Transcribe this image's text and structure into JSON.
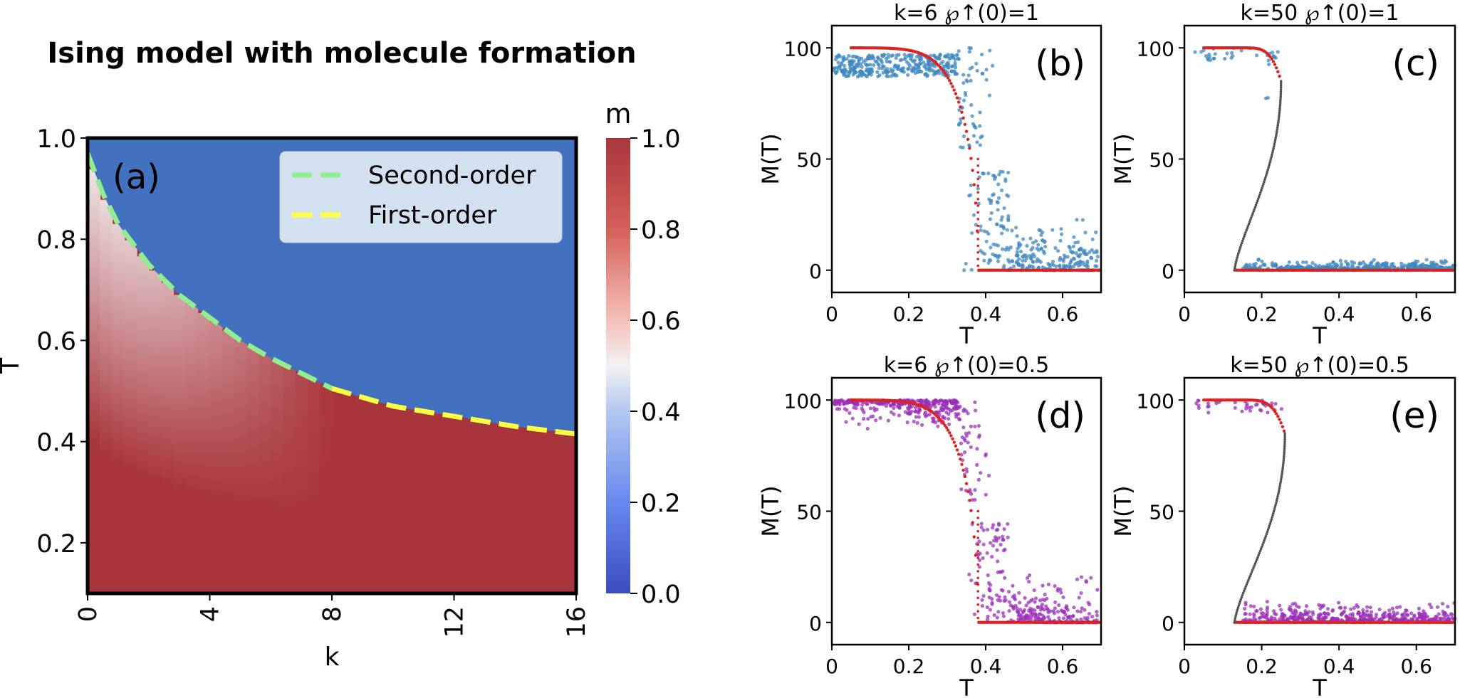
{
  "figure_title": "Ising model with molecule formation",
  "chart_data": [
    {
      "panel": "(a)",
      "type": "heatmap",
      "title": "Ising model with molecule formation",
      "xlabel": "k",
      "ylabel": "T",
      "xlim": [
        0,
        16
      ],
      "ylim": [
        0.1,
        1.0
      ],
      "x_ticks": [
        0,
        4,
        8,
        12,
        16
      ],
      "y_ticks": [
        0.2,
        0.4,
        0.6,
        0.8,
        1.0
      ],
      "colorbar": {
        "label": "m",
        "range": [
          0.0,
          1.0
        ],
        "ticks": [
          0.0,
          0.2,
          0.4,
          0.6,
          0.8,
          1.0
        ],
        "colormap": "coolwarm"
      },
      "colors": {
        "high": "#a8353b",
        "low": "#4271c0",
        "mid": "#f2f2f2",
        "second_order": "#90ee90",
        "first_order": "#ffff44"
      },
      "legend": {
        "position": "top-right",
        "entries": [
          "Second-order",
          "First-order"
        ]
      },
      "transition_lines": [
        {
          "name": "Second-order",
          "points": [
            [
              0,
              0.97
            ],
            [
              0.5,
              0.89
            ],
            [
              1,
              0.83
            ],
            [
              2,
              0.75
            ],
            [
              3,
              0.69
            ],
            [
              4,
              0.645
            ],
            [
              5,
              0.6
            ],
            [
              6,
              0.565
            ],
            [
              7,
              0.535
            ],
            [
              8,
              0.505
            ]
          ]
        },
        {
          "name": "First-order",
          "points": [
            [
              8,
              0.505
            ],
            [
              10,
              0.47
            ],
            [
              12,
              0.45
            ],
            [
              14,
              0.43
            ],
            [
              16,
              0.415
            ]
          ]
        }
      ]
    },
    {
      "panel": "(b)",
      "type": "scatter",
      "title": "k=6 ℘↑(0)=1",
      "xlabel": "T",
      "ylabel": "M(T)",
      "xlim": [
        0,
        0.7
      ],
      "ylim": [
        -10,
        110
      ],
      "x_ticks": [
        "0",
        "0.2",
        "0.4",
        "0.6"
      ],
      "y_ticks": [
        "0",
        "50",
        "100"
      ],
      "tc": 0.38,
      "colors": {
        "samples": "#3f88c0",
        "mean_field": "#dd2222"
      }
    },
    {
      "panel": "(c)",
      "type": "scatter",
      "title": "k=50 ℘↑(0)=1",
      "xlabel": "T",
      "ylabel": "M(T)",
      "xlim": [
        0,
        0.7
      ],
      "ylim": [
        -10,
        110
      ],
      "x_ticks": [
        "0",
        "0.2",
        "0.4",
        "0.6"
      ],
      "y_ticks": [
        "0",
        "50",
        "100"
      ],
      "spinodal_low": 0.13,
      "spinodal_high": 0.25,
      "colors": {
        "samples": "#3f88c0",
        "mean_field": "#dd2222",
        "unstable": "#555555"
      }
    },
    {
      "panel": "(d)",
      "type": "scatter",
      "title": "k=6 ℘↑(0)=0.5",
      "xlabel": "T",
      "ylabel": "M(T)",
      "xlim": [
        0,
        0.7
      ],
      "ylim": [
        -10,
        110
      ],
      "x_ticks": [
        "0",
        "0.2",
        "0.4",
        "0.6"
      ],
      "y_ticks": [
        "0",
        "50",
        "100"
      ],
      "tc": 0.38,
      "colors": {
        "samples": "#9b30b8",
        "mean_field": "#dd2222"
      }
    },
    {
      "panel": "(e)",
      "type": "scatter",
      "title": "k=50 ℘↑(0)=0.5",
      "xlabel": "T",
      "ylabel": "M(T)",
      "xlim": [
        0,
        0.7
      ],
      "ylim": [
        -10,
        110
      ],
      "x_ticks": [
        "0",
        "0.2",
        "0.4",
        "0.6"
      ],
      "y_ticks": [
        "0",
        "50",
        "100"
      ],
      "spinodal_low": 0.13,
      "spinodal_high": 0.26,
      "colors": {
        "samples": "#9b30b8",
        "mean_field": "#dd2222",
        "unstable": "#555555"
      }
    }
  ]
}
